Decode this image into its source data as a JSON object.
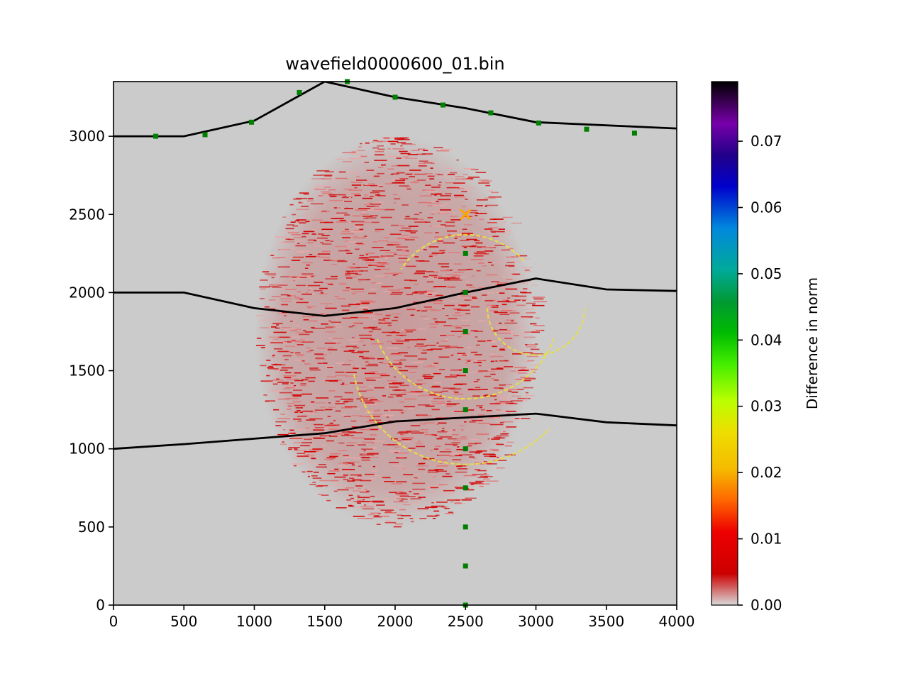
{
  "chart_data": {
    "type": "heatmap",
    "title": "wavefield0000600_01.bin",
    "xlabel": "",
    "ylabel": "",
    "xlim": [
      0,
      4000
    ],
    "ylim": [
      0,
      3350
    ],
    "x_ticks": [
      "0",
      "500",
      "1000",
      "1500",
      "2000",
      "2500",
      "3000",
      "3500",
      "4000"
    ],
    "y_ticks": [
      "0",
      "500",
      "1000",
      "1500",
      "2000",
      "2500",
      "3000"
    ],
    "background_color": "#cbcbcb",
    "layer_boundaries": [
      {
        "points": [
          [
            0,
            3000
          ],
          [
            500,
            3000
          ],
          [
            1000,
            3100
          ],
          [
            1500,
            3350
          ],
          [
            2000,
            3250
          ],
          [
            2500,
            3180
          ],
          [
            3000,
            3090
          ],
          [
            4000,
            3050
          ]
        ]
      },
      {
        "points": [
          [
            0,
            2000
          ],
          [
            500,
            2000
          ],
          [
            1000,
            1900
          ],
          [
            1500,
            1850
          ],
          [
            2000,
            1900
          ],
          [
            2500,
            2000
          ],
          [
            3000,
            2090
          ],
          [
            3500,
            2020
          ],
          [
            4000,
            2010
          ]
        ]
      },
      {
        "points": [
          [
            0,
            1000
          ],
          [
            500,
            1030
          ],
          [
            1000,
            1065
          ],
          [
            1500,
            1100
          ],
          [
            2000,
            1175
          ],
          [
            2500,
            1200
          ],
          [
            3000,
            1225
          ],
          [
            3500,
            1170
          ],
          [
            4000,
            1150
          ]
        ]
      }
    ],
    "surface_receivers": [
      [
        300,
        3000
      ],
      [
        650,
        3010
      ],
      [
        980,
        3090
      ],
      [
        1320,
        3280
      ],
      [
        1660,
        3350
      ],
      [
        2000,
        3250
      ],
      [
        2340,
        3200
      ],
      [
        2680,
        3150
      ],
      [
        3020,
        3085
      ],
      [
        3360,
        3045
      ],
      [
        3700,
        3020
      ]
    ],
    "borehole_receivers": [
      [
        2500,
        2250
      ],
      [
        2500,
        2000
      ],
      [
        2500,
        1750
      ],
      [
        2500,
        1500
      ],
      [
        2500,
        1250
      ],
      [
        2500,
        1000
      ],
      [
        2500,
        750
      ],
      [
        2500,
        500
      ],
      [
        2500,
        250
      ],
      [
        2500,
        0
      ]
    ],
    "source": [
      2500,
      2500
    ],
    "colorbar": {
      "label": "Difference in norm",
      "range": [
        0,
        0.079
      ],
      "ticks": [
        "0.00",
        "0.01",
        "0.02",
        "0.03",
        "0.04",
        "0.05",
        "0.06",
        "0.07"
      ]
    },
    "colors": {
      "layer_line": "#000000",
      "receiver": "#007f00",
      "source": "#ffa500"
    }
  }
}
